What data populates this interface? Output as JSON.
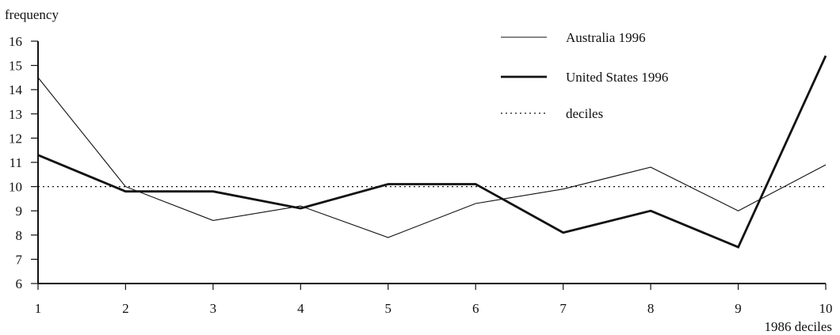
{
  "chart_data": {
    "type": "line",
    "ylabel": "frequency",
    "xlabel": "1986 deciles",
    "x": [
      1,
      2,
      3,
      4,
      5,
      6,
      7,
      8,
      9,
      10
    ],
    "xticks": [
      "1",
      "2",
      "3",
      "4",
      "5",
      "6",
      "7",
      "8",
      "9",
      "10"
    ],
    "yticks": [
      "6",
      "7",
      "8",
      "9",
      "10",
      "11",
      "12",
      "13",
      "14",
      "15",
      "16"
    ],
    "ylim": [
      6,
      16
    ],
    "xlim": [
      1,
      10
    ],
    "grid": false,
    "legend_position": "top-right",
    "series": [
      {
        "name": "Australia 1996",
        "style": "thin",
        "values": [
          14.5,
          10.0,
          8.6,
          9.2,
          7.9,
          9.3,
          9.9,
          10.8,
          9.0,
          10.9
        ]
      },
      {
        "name": "United States 1996",
        "style": "thick",
        "values": [
          11.3,
          9.8,
          9.8,
          9.1,
          10.1,
          10.1,
          8.1,
          9.0,
          7.5,
          15.4
        ]
      },
      {
        "name": "deciles",
        "style": "dotted",
        "values": [
          10,
          10,
          10,
          10,
          10,
          10,
          10,
          10,
          10,
          10
        ]
      }
    ],
    "colors": {
      "line": "#111111",
      "axis": "#111111"
    }
  }
}
